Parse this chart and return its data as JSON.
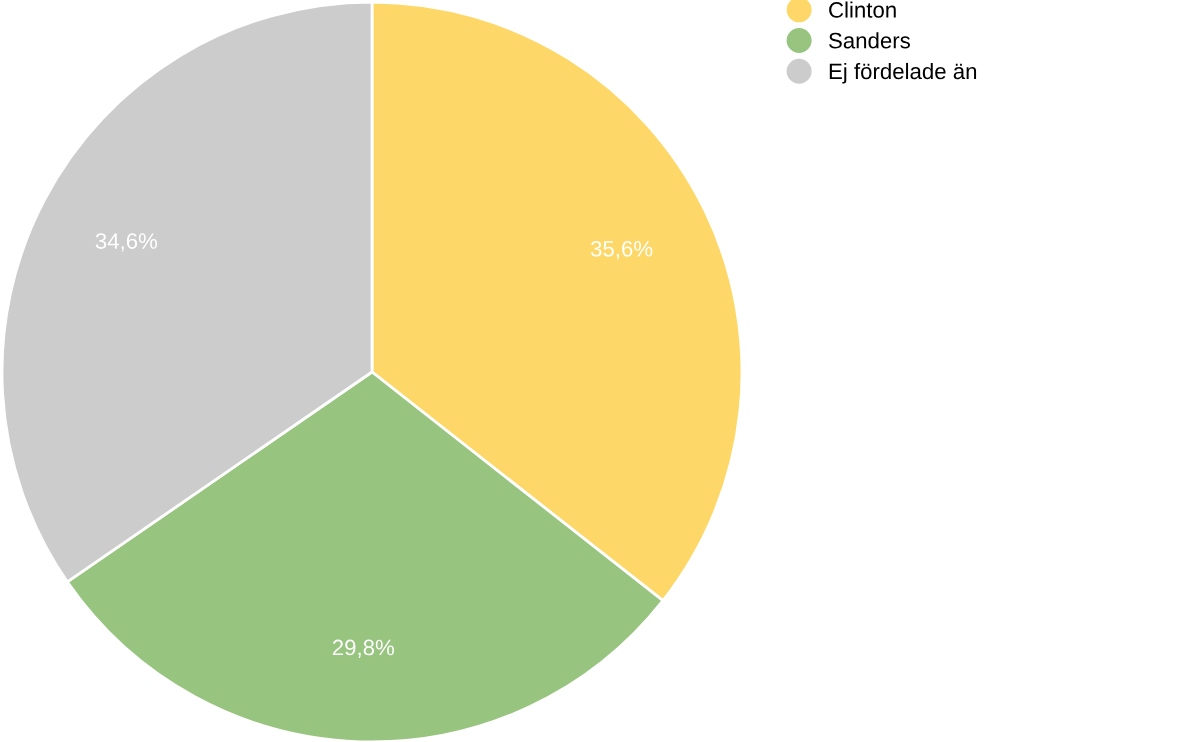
{
  "chart_data": {
    "type": "pie",
    "categories": [
      "Clinton",
      "Sanders",
      "Ej fördelade än"
    ],
    "values": [
      35.6,
      29.8,
      34.6
    ],
    "value_labels": [
      "35,6%",
      "29,8%",
      "34,6%"
    ],
    "colors": [
      "#fdd868",
      "#97c47e",
      "#cccccc"
    ],
    "legend": "top right"
  }
}
